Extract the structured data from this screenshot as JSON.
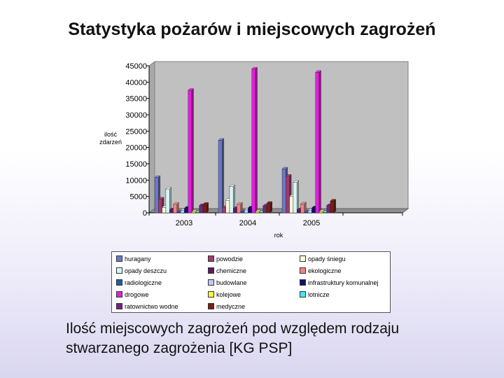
{
  "slide": {
    "title": "Statystyka pożarów i miejscowych zagrożeń",
    "caption_line1": "Ilość miejscowych zagrożeń pod względem rodzaju",
    "caption_line2": "stwarzanego zagrożenia [KG PSP]"
  },
  "chart_data": {
    "type": "bar",
    "style": "3d-clustered",
    "title": "",
    "xlabel": "rok",
    "ylabel": "ilość zdarzeń",
    "ylabel_lines": [
      "ilość",
      "zdarzeń"
    ],
    "categories": [
      "2003",
      "2004",
      "2005"
    ],
    "ylim": [
      0,
      45000
    ],
    "yticks": [
      0,
      5000,
      10000,
      15000,
      20000,
      25000,
      30000,
      35000,
      40000,
      45000
    ],
    "grid": false,
    "legend_position": "bottom",
    "series": [
      {
        "name": "huragany",
        "color": "#6b78c8",
        "values": [
          10800,
          22200,
          13400
        ]
      },
      {
        "name": "powodzie",
        "color": "#9e3c6c",
        "values": [
          4200,
          1600,
          11200
        ]
      },
      {
        "name": "opady śniegu",
        "color": "#fefee0",
        "values": [
          1600,
          3800,
          5000
        ]
      },
      {
        "name": "opady deszczu",
        "color": "#d8f4f4",
        "values": [
          7300,
          8000,
          9300
        ]
      },
      {
        "name": "chemiczne",
        "color": "#5e1a66",
        "values": [
          900,
          1300,
          900
        ]
      },
      {
        "name": "ekologiczne",
        "color": "#f08484",
        "values": [
          2600,
          2600,
          2700
        ]
      },
      {
        "name": "radiologiczne",
        "color": "#1e5dad",
        "values": [
          200,
          300,
          200
        ]
      },
      {
        "name": "budowlane",
        "color": "#c4c8f4",
        "values": [
          700,
          900,
          700
        ]
      },
      {
        "name": "infrastruktury komunalnej",
        "color": "#101070",
        "values": [
          1400,
          1500,
          1500
        ]
      },
      {
        "name": "drogowe",
        "color": "#e020d8",
        "values": [
          37500,
          44000,
          43000
        ]
      },
      {
        "name": "kolejowe",
        "color": "#ffff40",
        "values": [
          300,
          300,
          300
        ]
      },
      {
        "name": "lotnicze",
        "color": "#40e8f0",
        "values": [
          100,
          100,
          100
        ]
      },
      {
        "name": "ratownictwo wodne",
        "color": "#74247e",
        "values": [
          2200,
          2100,
          2200
        ]
      },
      {
        "name": "medyczne",
        "color": "#7a1c14",
        "values": [
          2600,
          2900,
          3600
        ]
      }
    ]
  }
}
